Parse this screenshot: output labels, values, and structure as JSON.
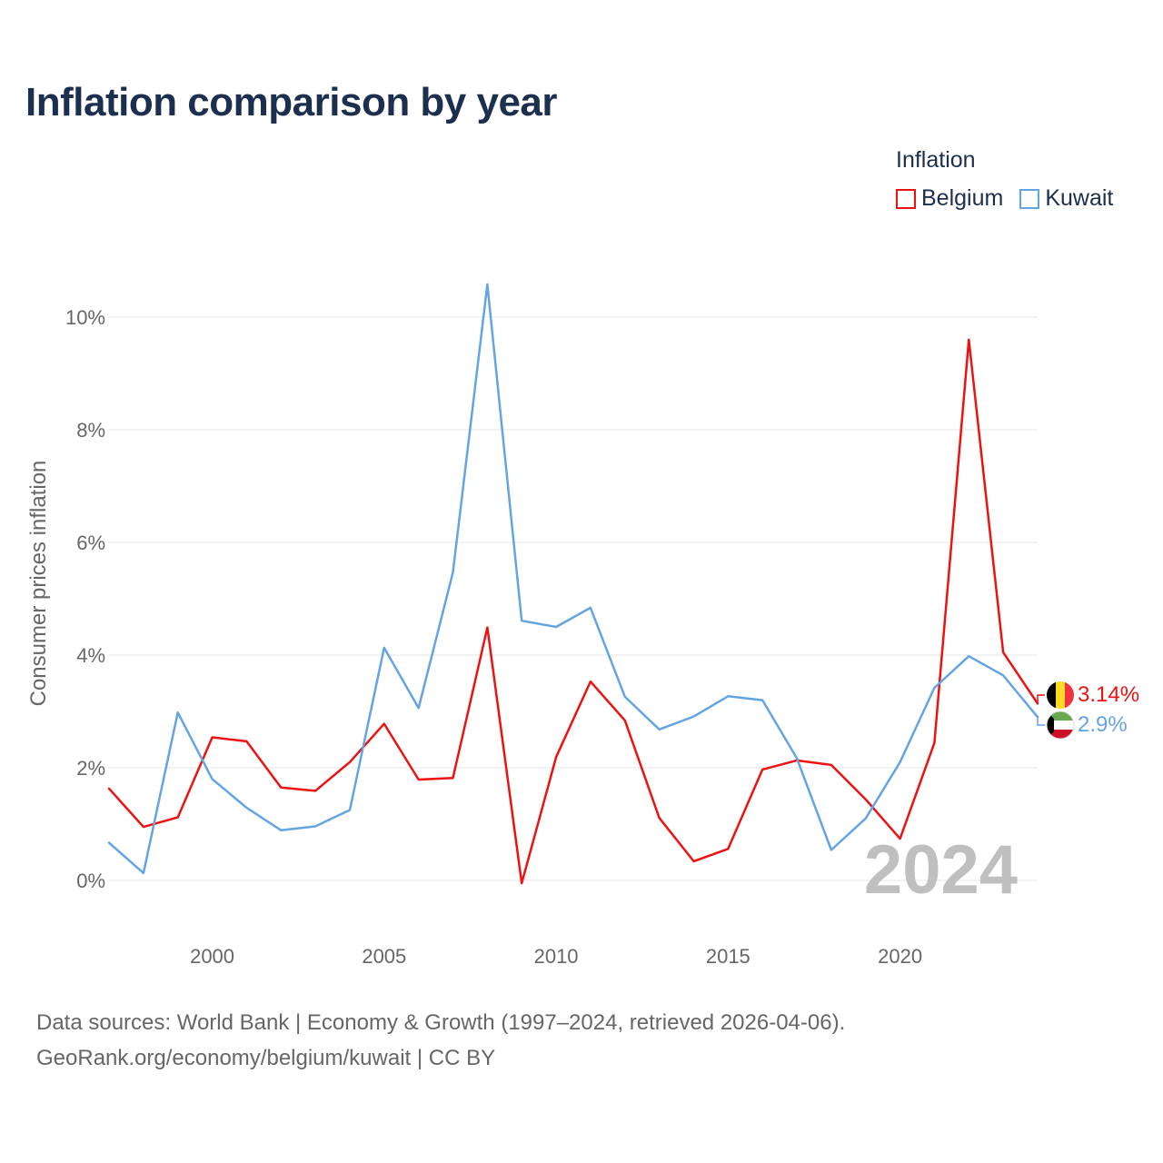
{
  "title": "Inflation comparison by year",
  "legend": {
    "title": "Inflation",
    "items": [
      {
        "label": "Belgium",
        "color": "#ee1111"
      },
      {
        "label": "Kuwait",
        "color": "#63a4e3"
      }
    ]
  },
  "footer": {
    "line1": "Data sources: World Bank | Economy & Growth (1997–2024, retrieved 2026-04-06).",
    "line2": "GeoRank.org/economy/belgium/kuwait | CC BY"
  },
  "chart_data": {
    "type": "line",
    "title": "Inflation comparison by year",
    "xlabel": "",
    "ylabel": "Consumer prices inflation",
    "xlim": [
      1997,
      2024
    ],
    "ylim": [
      -0.8,
      11.2
    ],
    "x_ticks": [
      2000,
      2005,
      2010,
      2015,
      2020
    ],
    "y_ticks": [
      0,
      2,
      4,
      6,
      8,
      10
    ],
    "y_tick_labels": [
      "0%",
      "2%",
      "4%",
      "6%",
      "8%",
      "10%"
    ],
    "grid": true,
    "legend_position": "top-right",
    "watermark_year": "2024",
    "x": [
      1997,
      1998,
      1999,
      2000,
      2001,
      2002,
      2003,
      2004,
      2005,
      2006,
      2007,
      2008,
      2009,
      2010,
      2011,
      2012,
      2013,
      2014,
      2015,
      2016,
      2017,
      2018,
      2019,
      2020,
      2021,
      2022,
      2023,
      2024
    ],
    "series": [
      {
        "name": "Belgium",
        "color": "#ee1111",
        "values": [
          1.63,
          0.95,
          1.12,
          2.54,
          2.47,
          1.65,
          1.59,
          2.1,
          2.78,
          1.79,
          1.82,
          4.49,
          -0.05,
          2.19,
          3.53,
          2.84,
          1.11,
          0.34,
          0.56,
          1.97,
          2.13,
          2.05,
          1.44,
          0.74,
          2.44,
          9.6,
          4.05,
          3.14
        ],
        "end_label": "3.14%"
      },
      {
        "name": "Kuwait",
        "color": "#63a4e3",
        "values": [
          0.67,
          0.13,
          2.98,
          1.8,
          1.29,
          0.89,
          0.96,
          1.25,
          4.13,
          3.06,
          5.47,
          10.58,
          4.61,
          4.5,
          4.84,
          3.26,
          2.68,
          2.91,
          3.27,
          3.2,
          2.17,
          0.54,
          1.1,
          2.1,
          3.42,
          3.98,
          3.64,
          2.9
        ],
        "end_label": "2.9%"
      }
    ]
  }
}
